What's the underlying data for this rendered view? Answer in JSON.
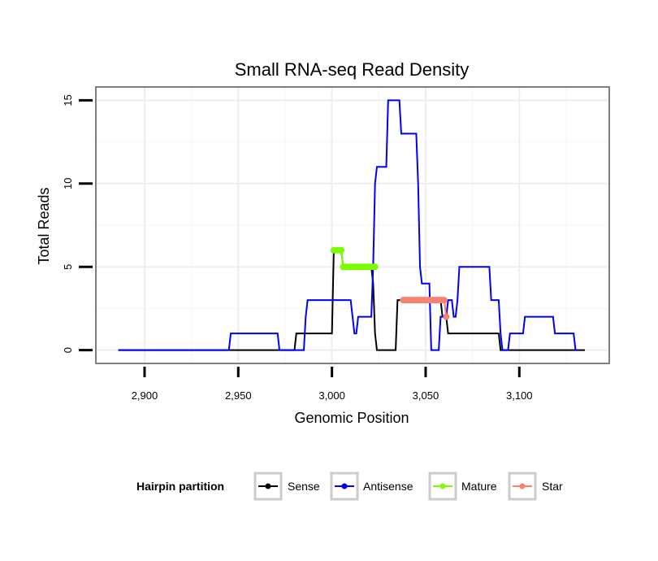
{
  "chart_data": {
    "type": "line",
    "title": "Small RNA-seq Read Density",
    "xlabel": "Genomic Position",
    "ylabel": "Total Reads",
    "xlim": [
      2874,
      3148
    ],
    "ylim": [
      -0.8,
      15.8
    ],
    "x_ticks": [
      2900,
      2950,
      3000,
      3050,
      3100
    ],
    "x_tick_labels": [
      "2,900",
      "2,950",
      "3,000",
      "3,050",
      "3,100"
    ],
    "y_ticks": [
      0,
      5,
      10,
      15
    ],
    "y_tick_labels": [
      "0",
      "5",
      "10",
      "15"
    ],
    "grid": true,
    "legend": {
      "title": "Hairpin partition",
      "position": "bottom",
      "entries": [
        "Sense",
        "Antisense",
        "Mature",
        "Star"
      ]
    },
    "series": [
      {
        "name": "Sense",
        "color": "#000000",
        "style": "line",
        "x": [
          2886,
          2980,
          2981,
          3000,
          3001,
          3005,
          3006,
          3021,
          3022,
          3023,
          3024,
          3034,
          3035,
          3058,
          3059,
          3061,
          3062,
          3089,
          3090,
          3135
        ],
        "y": [
          0,
          0,
          1,
          1,
          6,
          6,
          5,
          5,
          4,
          1,
          0,
          0,
          3,
          3,
          2,
          2,
          1,
          1,
          0,
          0
        ]
      },
      {
        "name": "Antisense",
        "color": "#0000ff",
        "style": "line",
        "x": [
          2886,
          2945,
          2946,
          2971,
          2972,
          2985,
          2986,
          2987,
          3010,
          3011,
          3012,
          3013,
          3014,
          3021,
          3022,
          3023,
          3024,
          3029,
          3030,
          3036,
          3037,
          3045,
          3046,
          3047,
          3048,
          3052,
          3053,
          3057,
          3058,
          3061,
          3062,
          3064,
          3065,
          3066,
          3067,
          3068,
          3084,
          3085,
          3089,
          3090,
          3091,
          3094,
          3095,
          3100,
          3101,
          3102,
          3103,
          3118,
          3119,
          3124,
          3125,
          3129,
          3130,
          3131
        ],
        "y": [
          0,
          0,
          1,
          1,
          0,
          0,
          2,
          3,
          3,
          2,
          1,
          1,
          2,
          2,
          5,
          10,
          11,
          11,
          15,
          15,
          13,
          13,
          10,
          5,
          4,
          4,
          0,
          0,
          2,
          2,
          3,
          3,
          2,
          2,
          3,
          5,
          5,
          3,
          3,
          1,
          0,
          0,
          1,
          1,
          1,
          1,
          2,
          2,
          1,
          1,
          1,
          1,
          0,
          0
        ]
      },
      {
        "name": "Mature",
        "color": "#7cfc00",
        "style": "dots",
        "x": [
          3001,
          3002,
          3003,
          3004,
          3005,
          3006,
          3007,
          3008,
          3009,
          3010,
          3011,
          3012,
          3013,
          3014,
          3015,
          3016,
          3017,
          3018,
          3019,
          3020,
          3021,
          3022,
          3023
        ],
        "y": [
          6,
          6,
          6,
          6,
          6,
          5,
          5,
          5,
          5,
          5,
          5,
          5,
          5,
          5,
          5,
          5,
          5,
          5,
          5,
          5,
          5,
          5,
          5
        ]
      },
      {
        "name": "Star",
        "color": "#fa8072",
        "style": "dots",
        "x": [
          3038,
          3039,
          3040,
          3041,
          3042,
          3043,
          3044,
          3045,
          3046,
          3047,
          3048,
          3049,
          3050,
          3051,
          3052,
          3053,
          3054,
          3055,
          3056,
          3057,
          3058,
          3059,
          3060,
          3061
        ],
        "y": [
          3,
          3,
          3,
          3,
          3,
          3,
          3,
          3,
          3,
          3,
          3,
          3,
          3,
          3,
          3,
          3,
          3,
          3,
          3,
          3,
          3,
          3,
          3,
          2
        ]
      }
    ]
  }
}
